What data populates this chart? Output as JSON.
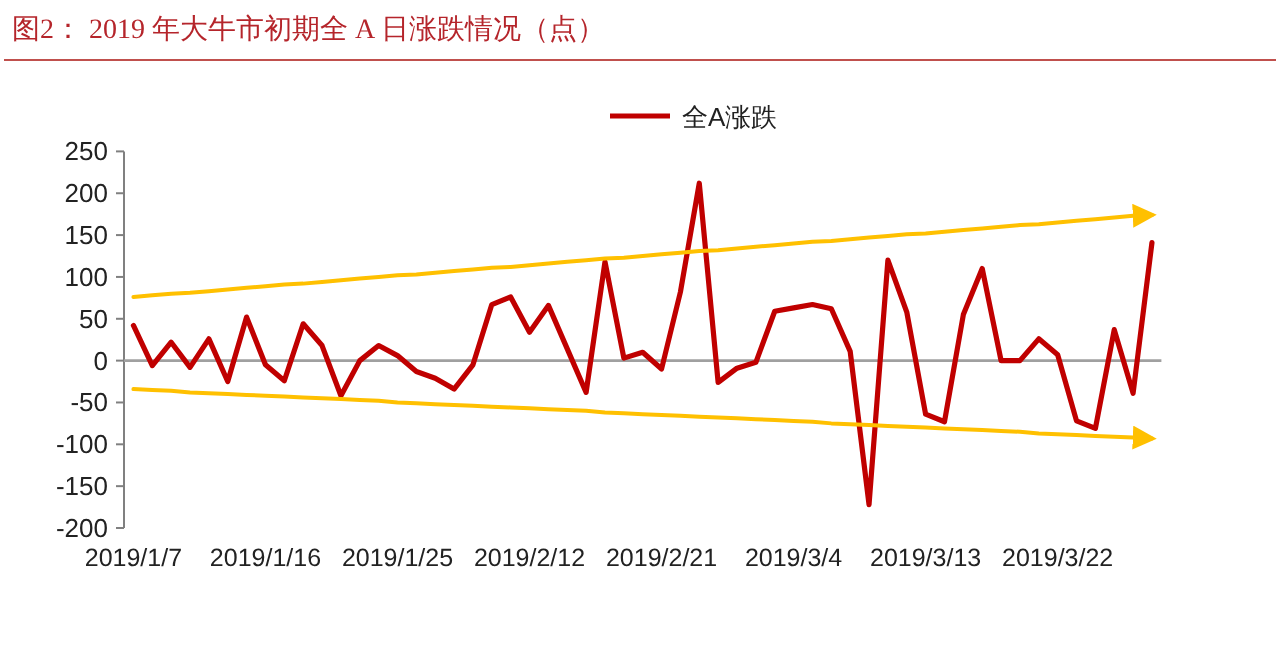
{
  "chart_data": {
    "type": "line",
    "title": "图2：  2019 年大牛市初期全 A 日涨跌情况（点）",
    "legend": "top",
    "categories": [
      "2019/1/7",
      null,
      null,
      null,
      null,
      null,
      null,
      "2019/1/16",
      null,
      null,
      null,
      null,
      null,
      null,
      "2019/1/25",
      null,
      null,
      null,
      null,
      null,
      null,
      "2019/2/12",
      null,
      null,
      null,
      null,
      null,
      null,
      "2019/2/21",
      null,
      null,
      null,
      null,
      null,
      null,
      "2019/3/4",
      null,
      null,
      null,
      null,
      null,
      null,
      "2019/3/13",
      null,
      null,
      null,
      null,
      null,
      null,
      "2019/3/22",
      null,
      null,
      null,
      null,
      null
    ],
    "ylim": [
      -200,
      250
    ],
    "yticks": [
      -200,
      -150,
      -100,
      -50,
      0,
      50,
      100,
      150,
      200,
      250
    ],
    "series": [
      {
        "name": "全A涨跌",
        "color": "#c00000",
        "values": [
          42,
          -6,
          22,
          -8,
          26,
          -25,
          52,
          -5,
          -24,
          44,
          18,
          -42,
          0,
          18,
          6,
          -13,
          -21,
          -34,
          -5,
          67,
          76,
          34,
          66,
          14,
          -38,
          118,
          3,
          10,
          -10,
          82,
          212,
          -26,
          -9,
          -2,
          59,
          63,
          67,
          62,
          11,
          -172,
          120,
          58,
          -64,
          -73,
          55,
          110,
          0,
          0,
          26,
          7,
          -72,
          -81,
          37,
          -39,
          141
        ]
      },
      {
        "type": "line",
        "color": "#ffc000",
        "values": [
          76,
          78,
          80,
          81,
          83,
          85,
          87,
          89,
          91,
          92,
          94,
          96,
          98,
          100,
          102,
          103,
          105,
          107,
          109,
          111,
          112,
          114,
          116,
          118,
          120,
          122,
          123,
          125,
          127,
          129,
          131,
          132,
          134,
          136,
          138,
          140,
          142,
          143,
          145,
          147,
          149,
          151,
          152,
          154,
          156,
          158,
          160,
          162,
          163,
          165,
          167,
          169,
          171,
          173,
          174
        ]
      },
      {
        "type": "line",
        "color": "#ffc000",
        "values": [
          -34,
          -35,
          -36,
          -38,
          -39,
          -40,
          -41,
          -42,
          -43,
          -44,
          -45,
          -46,
          -47,
          -48,
          -50,
          -51,
          -52,
          -53,
          -54,
          -55,
          -56,
          -57,
          -58,
          -59,
          -60,
          -62,
          -63,
          -64,
          -65,
          -66,
          -67,
          -68,
          -69,
          -70,
          -71,
          -72,
          -73,
          -75,
          -76,
          -77,
          -78,
          -79,
          -80,
          -81,
          -82,
          -83,
          -84,
          -85,
          -87,
          -88,
          -89,
          -90,
          -91,
          -92,
          -93
        ]
      }
    ]
  }
}
